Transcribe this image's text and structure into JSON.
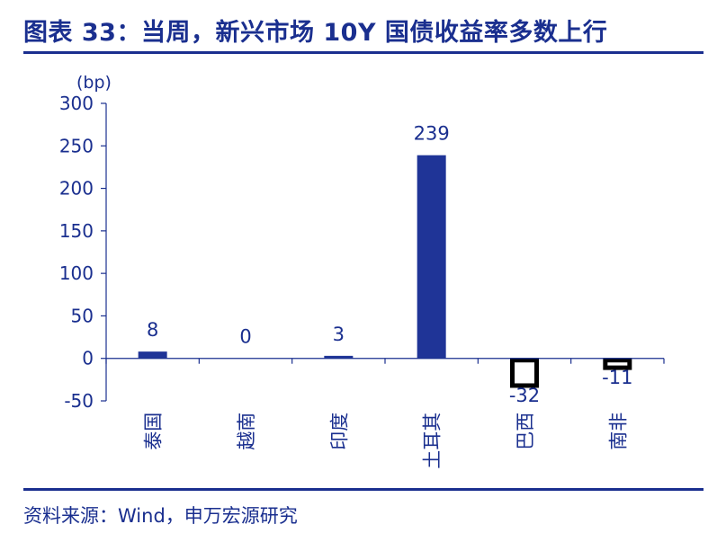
{
  "header": {
    "title": "图表 33：当周，新兴市场 10Y 国债收益率多数上行"
  },
  "footer": {
    "source": "资料来源：Wind，申万宏源研究"
  },
  "colors": {
    "accent": "#1a2f8f",
    "bar_positive": "#1f3497",
    "bar_negative_border": "#000000",
    "axis": "#1a2f8f",
    "tick_text": "#1a2f8f"
  },
  "chart_data": {
    "type": "bar",
    "unit_label": "(bp)",
    "categories": [
      "泰国",
      "越南",
      "印度",
      "土耳其",
      "巴西",
      "南非"
    ],
    "values": [
      8,
      0,
      3,
      239,
      -32,
      -11
    ],
    "data_labels": [
      "8",
      "0",
      "3",
      "239",
      "-32",
      "-11"
    ],
    "ylim": [
      -50,
      300
    ],
    "yticks": [
      -50,
      0,
      50,
      100,
      150,
      200,
      250,
      300
    ],
    "grid": false,
    "legend": "none"
  }
}
